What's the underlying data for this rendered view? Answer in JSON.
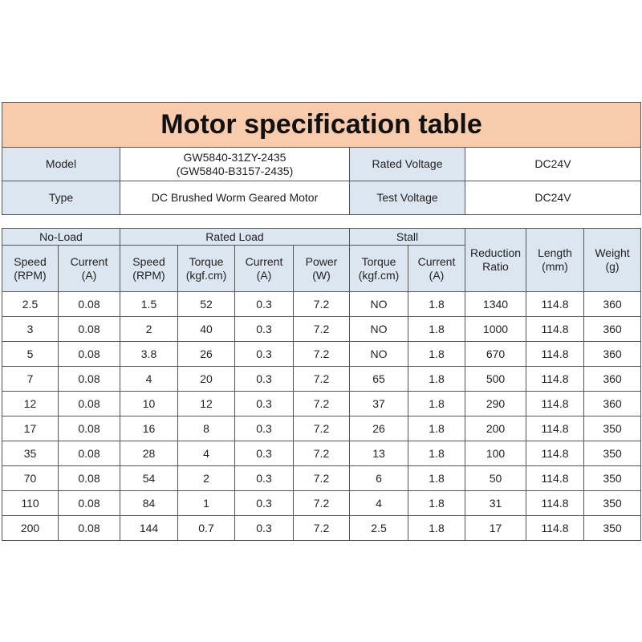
{
  "header": {
    "title": "Motor specification table"
  },
  "info": [
    {
      "label": "Model",
      "value": [
        "GW5840-31ZY-2435",
        "(GW5840-B3157-2435)"
      ],
      "label2": "Rated Voltage",
      "value2": "DC24V"
    },
    {
      "label": "Type",
      "value": [
        "DC Brushed Worm Geared Motor"
      ],
      "label2": "Test Voltage",
      "value2": "DC24V"
    }
  ],
  "table": {
    "groups": [
      "No-Load",
      "Rated Load",
      "Stall"
    ],
    "columns": [
      {
        "name": "Speed",
        "unit": "(RPM)"
      },
      {
        "name": "Current",
        "unit": "(A)"
      },
      {
        "name": "Speed",
        "unit": "(RPM)"
      },
      {
        "name": "Torque",
        "unit": "(kgf.cm)"
      },
      {
        "name": "Current",
        "unit": "(A)"
      },
      {
        "name": "Power",
        "unit": "(W)"
      },
      {
        "name": "Torque",
        "unit": "(kgf.cm)"
      },
      {
        "name": "Current",
        "unit": "(A)"
      },
      {
        "name": "Reduction Ratio"
      },
      {
        "name": "Length",
        "unit": "(mm)"
      },
      {
        "name": "Weight",
        "unit": "(g)"
      }
    ],
    "rows": [
      [
        2.5,
        0.08,
        1.5,
        52,
        0.3,
        7.2,
        "NO",
        1.8,
        1340,
        114.8,
        360
      ],
      [
        3,
        0.08,
        2,
        40,
        0.3,
        7.2,
        "NO",
        1.8,
        1000,
        114.8,
        360
      ],
      [
        5,
        0.08,
        3.8,
        26,
        0.3,
        7.2,
        "NO",
        1.8,
        670,
        114.8,
        360
      ],
      [
        7,
        0.08,
        4,
        20,
        0.3,
        7.2,
        65,
        1.8,
        500,
        114.8,
        360
      ],
      [
        12,
        0.08,
        10,
        12,
        0.3,
        7.2,
        37,
        1.8,
        290,
        114.8,
        360
      ],
      [
        17,
        0.08,
        16,
        8,
        0.3,
        7.2,
        26,
        1.8,
        200,
        114.8,
        350
      ],
      [
        35,
        0.08,
        28,
        4,
        0.3,
        7.2,
        13,
        1.8,
        100,
        114.8,
        350
      ],
      [
        70,
        0.08,
        54,
        2,
        0.3,
        7.2,
        6,
        1.8,
        50,
        114.8,
        350
      ],
      [
        110,
        0.08,
        84,
        1,
        0.3,
        7.2,
        4,
        1.8,
        31,
        114.8,
        350
      ],
      [
        200,
        0.08,
        144,
        0.7,
        0.3,
        7.2,
        2.5,
        1.8,
        17,
        114.8,
        350
      ]
    ]
  }
}
